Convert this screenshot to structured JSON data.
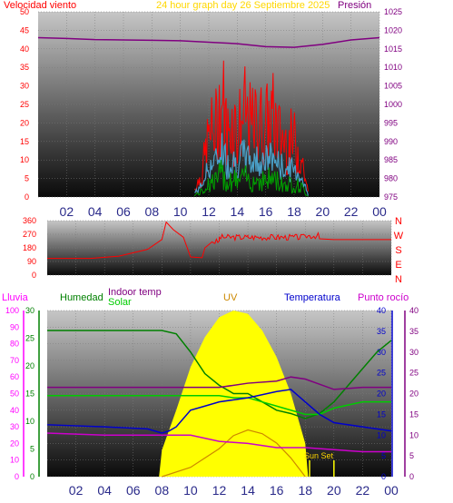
{
  "labels": {
    "wind_speed": "Velocidad viento",
    "title": "24 hour graph day   26 Septiembre 2025",
    "pressure": "Presión",
    "rain": "Lluvia",
    "humidity": "Humedad",
    "indoor_temp": "Indoor temp",
    "solar": "Solar",
    "uv": "UV",
    "temperature": "Temperatura",
    "dew_point": "Punto rocío",
    "sunset": "Sun Set"
  },
  "colors": {
    "wind_speed": "#ff0000",
    "pressure": "#800080",
    "title": "#ffd700",
    "rain": "#ff00ff",
    "humidity": "#008000",
    "indoor_temp": "#800080",
    "solar": "#00cc00",
    "uv": "#cc8800",
    "temperature": "#0000cc",
    "dew_point": "#cc00cc",
    "sun_fill": "#ffff00",
    "direction": "#ff0000"
  },
  "x_ticks": [
    "02",
    "04",
    "06",
    "08",
    "10",
    "12",
    "14",
    "16",
    "18",
    "20",
    "22",
    "00"
  ],
  "compass": [
    "N",
    "W",
    "S",
    "E",
    "N"
  ],
  "chart_data": [
    {
      "type": "line",
      "name": "wind_pressure",
      "x_range_hours": [
        0,
        24
      ],
      "ylim_left": [
        0,
        50
      ],
      "y_ticks_left": [
        "0",
        "5",
        "10",
        "15",
        "20",
        "25",
        "30",
        "35",
        "40",
        "45",
        "50"
      ],
      "ylim_right": [
        975,
        1025
      ],
      "y_ticks_right": [
        "975",
        "980",
        "985",
        "990",
        "995",
        "1000",
        "1005",
        "1010",
        "1015",
        "1020",
        "1025"
      ],
      "series": [
        {
          "name": "Velocidad viento",
          "x": [
            11,
            11.5,
            12,
            12.5,
            12.8,
            13,
            13.3,
            13.6,
            14,
            14.5,
            15,
            15.5,
            16,
            16.5,
            17,
            17.5,
            18,
            18.5,
            19
          ],
          "values": [
            3,
            8,
            22,
            25,
            33,
            35,
            22,
            28,
            24,
            30,
            25,
            27,
            26,
            29,
            22,
            20,
            20,
            15,
            1
          ]
        },
        {
          "name": "Presión",
          "x": [
            0,
            2,
            4,
            6,
            8,
            10,
            12,
            14,
            16,
            18,
            20,
            22,
            24
          ],
          "values": [
            1018,
            1017.8,
            1017.5,
            1017.4,
            1017.3,
            1017.2,
            1016.8,
            1016.4,
            1015.6,
            1015.4,
            1016.2,
            1017.4,
            1018
          ]
        }
      ]
    },
    {
      "type": "line",
      "name": "wind_direction",
      "x_range_hours": [
        0,
        24
      ],
      "ylim": [
        0,
        360
      ],
      "y_ticks": [
        "0",
        "90",
        "180",
        "270",
        "360"
      ],
      "series": [
        {
          "name": "direction",
          "x": [
            0,
            3,
            5,
            7,
            8,
            8.3,
            8.8,
            9.5,
            10,
            10.8,
            11,
            11.5,
            12,
            14,
            16,
            18,
            19,
            20,
            22,
            24
          ],
          "values": [
            110,
            110,
            125,
            170,
            235,
            350,
            300,
            250,
            120,
            115,
            180,
            220,
            250,
            250,
            250,
            260,
            240,
            235,
            235,
            235
          ]
        }
      ]
    },
    {
      "type": "line",
      "name": "temperature_humidity",
      "x_range_hours": [
        0,
        24
      ],
      "ylim_rain": [
        0,
        100
      ],
      "y_ticks_rain": [
        "0",
        "10",
        "20",
        "30",
        "40",
        "50",
        "60",
        "70",
        "80",
        "90",
        "100"
      ],
      "ylim_hum": [
        0,
        30
      ],
      "y_ticks_hum": [
        "0",
        "5",
        "10",
        "15",
        "20",
        "25",
        "30"
      ],
      "ylim_temp": [
        0,
        40
      ],
      "y_ticks_temp": [
        "0",
        "5",
        "10",
        "15",
        "20",
        "25",
        "30",
        "35",
        "40"
      ],
      "series": [
        {
          "name": "Humedad",
          "x": [
            0,
            4,
            8,
            9,
            10,
            11,
            12,
            13,
            14,
            15,
            16,
            17,
            18,
            19,
            20,
            21,
            22,
            23,
            24
          ],
          "values": [
            88,
            88,
            88,
            86,
            75,
            62,
            55,
            50,
            50,
            45,
            40,
            38,
            35,
            38,
            45,
            55,
            65,
            75,
            82
          ]
        },
        {
          "name": "Indoor temp",
          "x": [
            0,
            4,
            8,
            10,
            12,
            14,
            16,
            17,
            18,
            20,
            22,
            24
          ],
          "values": [
            21.5,
            21.5,
            21.5,
            21.5,
            21.5,
            22.5,
            23,
            24,
            23.5,
            21,
            21.5,
            21.5
          ]
        },
        {
          "name": "Solar",
          "x": [
            0,
            4,
            8,
            10,
            12,
            13,
            14,
            16,
            18,
            19,
            20,
            22,
            24
          ],
          "values": [
            19.5,
            19.5,
            19.5,
            19.5,
            19.5,
            19,
            19,
            17,
            15,
            15,
            16.5,
            18,
            18
          ]
        },
        {
          "name": "Temperatura",
          "x": [
            0,
            4,
            7,
            8,
            8.5,
            9,
            10,
            11,
            12,
            14,
            16,
            17,
            18,
            19,
            20,
            22,
            24
          ],
          "values": [
            12.5,
            12,
            11.5,
            10.5,
            11,
            12,
            16,
            17,
            18,
            19,
            20.5,
            21,
            18,
            15,
            13,
            12,
            11
          ]
        },
        {
          "name": "Punto rocío",
          "x": [
            0,
            4,
            8,
            10,
            12,
            14,
            16,
            18,
            20,
            22,
            24
          ],
          "values": [
            10.5,
            10,
            10,
            10,
            8.5,
            8,
            7,
            7,
            6.5,
            6,
            6
          ]
        },
        {
          "name": "UV",
          "x": [
            8,
            10,
            12,
            13,
            14,
            15,
            16,
            17,
            18
          ],
          "values": [
            0,
            5,
            15,
            22,
            25,
            23,
            18,
            10,
            0
          ]
        },
        {
          "name": "Solar radiation",
          "x": [
            7.8,
            8,
            9,
            10,
            11,
            12,
            13,
            14,
            15,
            16,
            17,
            18,
            18.2
          ],
          "values": [
            0,
            8,
            20,
            33,
            42,
            48,
            50,
            49,
            44,
            36,
            25,
            10,
            0
          ]
        }
      ]
    }
  ]
}
